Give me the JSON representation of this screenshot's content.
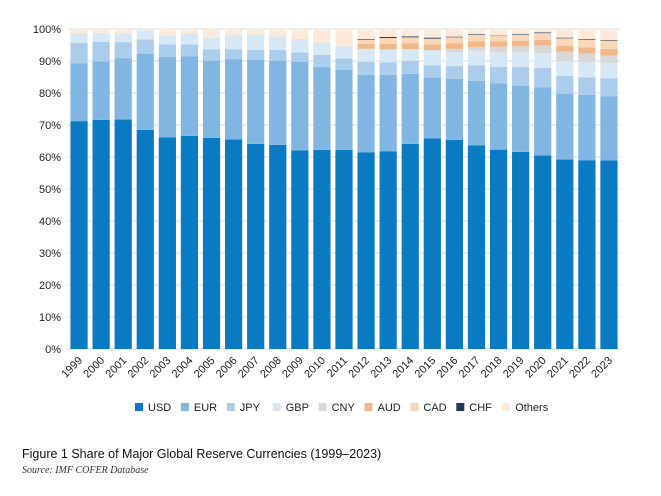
{
  "chart_data": {
    "type": "bar",
    "stacked": true,
    "title": "Figure 1 Share of Major Global Reserve Currencies (1999–2023)",
    "source": "Source: IMF COFER Database",
    "xlabel": "",
    "ylabel": "",
    "ylim": [
      0,
      100
    ],
    "y_tick_labels": [
      "0%",
      "10%",
      "20%",
      "30%",
      "40%",
      "50%",
      "60%",
      "70%",
      "80%",
      "90%",
      "100%"
    ],
    "grid": true,
    "legend_position": "bottom",
    "categories": [
      "1999",
      "2000",
      "2001",
      "2002",
      "2003",
      "2004",
      "2005",
      "2006",
      "2007",
      "2008",
      "2009",
      "2010",
      "2011",
      "2012",
      "2013",
      "2014",
      "2015",
      "2016",
      "2017",
      "2018",
      "2019",
      "2020",
      "2021",
      "2022",
      "2023"
    ],
    "series": [
      {
        "name": "USD",
        "color": "#0a7ac3",
        "values": [
          71.2,
          71.6,
          71.7,
          68.5,
          66.1,
          66.6,
          66.0,
          65.5,
          64.1,
          63.8,
          62.1,
          62.2,
          62.2,
          61.5,
          61.8,
          64.1,
          65.8,
          65.3,
          63.6,
          62.3,
          61.6,
          60.5,
          59.2,
          59.0,
          58.9
        ]
      },
      {
        "name": "EUR",
        "color": "#82b6e2",
        "values": [
          18.1,
          18.3,
          19.2,
          23.8,
          25.2,
          24.8,
          24.1,
          25.1,
          26.2,
          26.2,
          27.7,
          26.0,
          25.1,
          24.2,
          23.9,
          21.9,
          19.1,
          19.1,
          20.2,
          20.7,
          20.6,
          21.3,
          20.6,
          20.4,
          20.0
        ]
      },
      {
        "name": "JPY",
        "color": "#abcdeb",
        "values": [
          6.4,
          6.1,
          5.0,
          4.4,
          3.9,
          3.8,
          3.6,
          3.1,
          3.2,
          3.5,
          2.9,
          3.7,
          3.5,
          4.1,
          3.9,
          4.0,
          3.8,
          4.0,
          4.9,
          5.2,
          5.9,
          6.0,
          5.5,
          5.5,
          5.7
        ]
      },
      {
        "name": "GBP",
        "color": "#d6e8f6",
        "values": [
          2.9,
          2.8,
          2.7,
          2.9,
          2.8,
          3.4,
          3.6,
          4.4,
          4.8,
          4.2,
          4.2,
          3.9,
          3.8,
          4.0,
          4.0,
          3.7,
          4.7,
          4.3,
          4.5,
          4.4,
          4.6,
          4.7,
          4.8,
          4.8,
          4.8
        ]
      },
      {
        "name": "CNY",
        "color": "#d8d8d8",
        "values": [
          0,
          0,
          0,
          0,
          0,
          0,
          0,
          0,
          0,
          0,
          0,
          0,
          0,
          0,
          0,
          0,
          0,
          1.1,
          1.2,
          1.9,
          1.9,
          2.3,
          2.8,
          2.6,
          2.3
        ]
      },
      {
        "name": "AUD",
        "color": "#f1b98a",
        "values": [
          0,
          0,
          0,
          0,
          0,
          0,
          0,
          0,
          0,
          0,
          0,
          0,
          0,
          1.5,
          1.8,
          1.8,
          1.8,
          1.7,
          1.8,
          1.6,
          1.7,
          1.8,
          1.8,
          2.0,
          2.1
        ]
      },
      {
        "name": "CAD",
        "color": "#f7d7b8",
        "values": [
          0,
          0,
          0,
          0,
          0,
          0,
          0,
          0,
          0,
          0,
          0,
          0,
          0,
          1.4,
          1.8,
          1.9,
          1.8,
          1.9,
          2.0,
          1.8,
          1.9,
          2.1,
          2.4,
          2.4,
          2.6
        ]
      },
      {
        "name": "CHF",
        "color": "#1f3a5c",
        "values": [
          0,
          0,
          0,
          0,
          0,
          0,
          0,
          0,
          0,
          0,
          0,
          0,
          0,
          0.2,
          0.3,
          0.3,
          0.3,
          0.2,
          0.2,
          0.1,
          0.2,
          0.2,
          0.2,
          0.2,
          0.2
        ]
      },
      {
        "name": "Others",
        "color": "#fde9d8",
        "values": [
          1.4,
          1.2,
          1.4,
          0.4,
          2.0,
          1.4,
          2.7,
          1.9,
          1.7,
          2.3,
          3.1,
          4.2,
          5.4,
          3.1,
          2.5,
          2.3,
          2.7,
          2.4,
          1.6,
          2.0,
          1.6,
          1.1,
          2.7,
          3.1,
          3.4
        ]
      }
    ]
  }
}
